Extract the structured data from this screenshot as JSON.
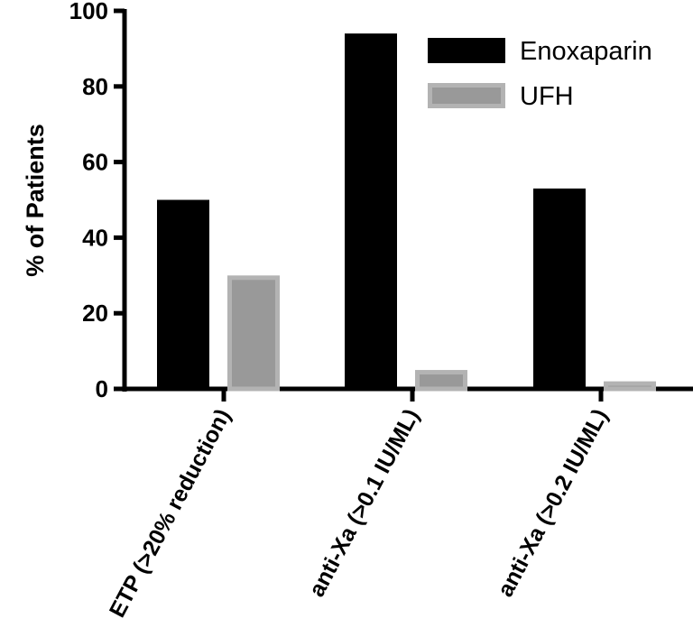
{
  "chart_data": {
    "type": "bar",
    "title": "",
    "xlabel": "",
    "ylabel": "% of Patients",
    "ylim": [
      0,
      100
    ],
    "yticks": [
      0,
      20,
      40,
      60,
      80,
      100
    ],
    "categories": [
      "ETP (>20% reduction)",
      "anti-Xa (>0.1 IU/ML)",
      "anti-Xa (>0.2 IU/ML)"
    ],
    "series": [
      {
        "name": "Enoxaparin",
        "values": [
          50,
          94,
          53
        ],
        "color": "#000000"
      },
      {
        "name": "UFH",
        "values": [
          30,
          5,
          2
        ],
        "color": "#a0a0a0"
      }
    ],
    "legend": "top-right",
    "grid": false
  }
}
